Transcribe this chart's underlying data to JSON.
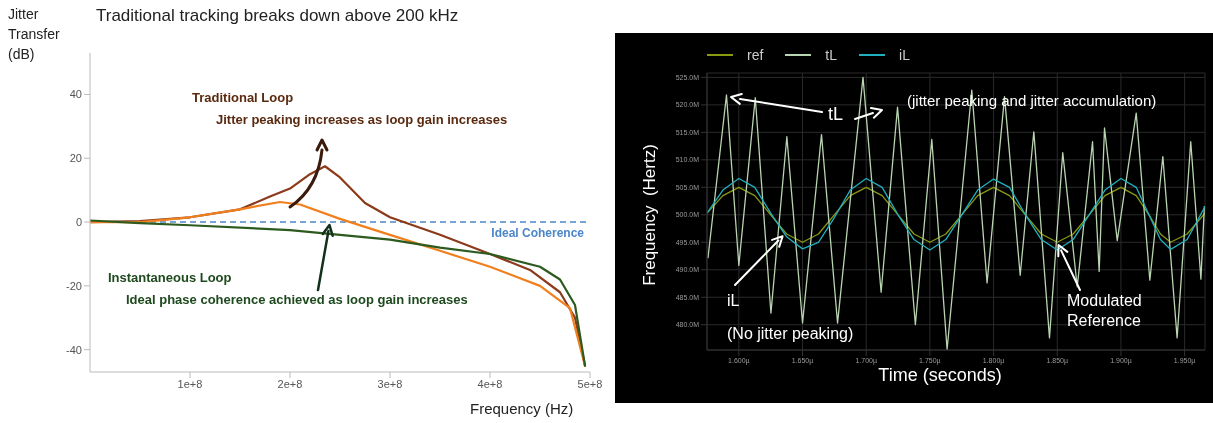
{
  "chart_data": [
    {
      "type": "line",
      "title": "Traditional tracking breaks down above 200 kHz",
      "xlabel": "Frequency (Hz)",
      "ylabel": "Jitter Transfer (dB)",
      "xlim": [
        0,
        500000000.0
      ],
      "ylim": [
        -47,
        53
      ],
      "xticks": [
        {
          "value": 100000000.0,
          "label": "1e+8"
        },
        {
          "value": 200000000.0,
          "label": "2e+8"
        },
        {
          "value": 300000000.0,
          "label": "3e+8"
        },
        {
          "value": 400000000.0,
          "label": "4e+8"
        },
        {
          "value": 500000000.0,
          "label": "5e+8"
        }
      ],
      "yticks": [
        -40,
        -20,
        0,
        20,
        40
      ],
      "grid": false,
      "legend": false,
      "marker": "none",
      "line_style": "solid",
      "series": [
        {
          "color": "#8b3a1a",
          "x": [
            0,
            50000000.0,
            100000000.0,
            150000000.0,
            180000000.0,
            200000000.0,
            220000000.0,
            235000000.0,
            250000000.0,
            275000000.0,
            300000000.0,
            350000000.0,
            400000000.0,
            440000000.0,
            470000000.0,
            485000000.0,
            495000000.0
          ],
          "values": [
            0,
            0.3,
            1.5,
            4,
            8,
            10.5,
            15,
            17.5,
            14,
            6,
            1.5,
            -4,
            -10,
            -15,
            -22,
            -30,
            -45
          ]
        },
        {
          "color": "#f07f1e",
          "x": [
            0,
            50000000.0,
            100000000.0,
            150000000.0,
            190000000.0,
            210000000.0,
            250000000.0,
            300000000.0,
            350000000.0,
            400000000.0,
            450000000.0,
            480000000.0,
            495000000.0
          ],
          "values": [
            0,
            0,
            1.5,
            4,
            6.3,
            5.5,
            1,
            -4,
            -9,
            -14,
            -20,
            -27,
            -45
          ]
        },
        {
          "color": "#2d5a1e",
          "x": [
            0,
            50000000.0,
            100000000.0,
            200000000.0,
            250000000.0,
            300000000.0,
            350000000.0,
            400000000.0,
            450000000.0,
            470000000.0,
            485000000.0,
            495000000.0
          ],
          "values": [
            0.5,
            -0.3,
            -1,
            -2.5,
            -4,
            -5.5,
            -8,
            -10,
            -14,
            -18,
            -26,
            -45
          ]
        }
      ],
      "ref_lines": [
        {
          "axis": "y",
          "value": 0,
          "label": "Ideal Coherence",
          "color": "#4a86c8",
          "line_style": "dashed"
        }
      ],
      "annotations": [
        "Traditional Loop",
        "Jitter peaking increases as loop gain increases",
        "Instantaneous Loop",
        {
          "text": "Ideal phase coherence achieved as loop gain increases",
          "x": 240000000.0,
          "y": 0
        }
      ]
    },
    {
      "type": "line",
      "xlabel": "Time (seconds)",
      "ylabel": "Frequency  (Hertz)",
      "xlim": [
        1.575,
        1.966
      ],
      "ylim": [
        475.4,
        525.8
      ],
      "xticks": [
        {
          "value": 1.6,
          "label": "1.600µ"
        },
        {
          "value": 1.65,
          "label": "1.650µ"
        },
        {
          "value": 1.7,
          "label": "1.700µ"
        },
        {
          "value": 1.75,
          "label": "1.750µ"
        },
        {
          "value": 1.8,
          "label": "1.800µ"
        },
        {
          "value": 1.85,
          "label": "1.850µ"
        },
        {
          "value": 1.9,
          "label": "1.900µ"
        },
        {
          "value": 1.95,
          "label": "1.950µ"
        }
      ],
      "yticks": [
        {
          "value": 480,
          "label": "480.0M"
        },
        {
          "value": 485,
          "label": "485.0M"
        },
        {
          "value": 490,
          "label": "490.0M"
        },
        {
          "value": 495,
          "label": "495.0M"
        },
        {
          "value": 500,
          "label": "500.0M"
        },
        {
          "value": 505,
          "label": "505.0M"
        },
        {
          "value": 510,
          "label": "510.0M"
        },
        {
          "value": 515,
          "label": "515.0M"
        },
        {
          "value": 520,
          "label": "520.0M"
        },
        {
          "value": 525,
          "label": "525.0M"
        }
      ],
      "grid": true,
      "legend": "top left",
      "marker": "none",
      "line_style": "solid",
      "series": [
        {
          "name": "ref",
          "color": "#8a9a10",
          "x": [
            1.575,
            1.5875,
            1.6,
            1.6125,
            1.625,
            1.6375,
            1.65,
            1.6625,
            1.675,
            1.6875,
            1.7,
            1.7125,
            1.725,
            1.7375,
            1.75,
            1.7625,
            1.775,
            1.7875,
            1.8,
            1.8125,
            1.825,
            1.8375,
            1.85,
            1.8625,
            1.875,
            1.8875,
            1.9,
            1.912,
            1.922,
            1.931,
            1.939,
            1.952,
            1.966
          ],
          "values": [
            500.3,
            503.5,
            505,
            503.5,
            500,
            496.5,
            495,
            496.5,
            500,
            503.5,
            505,
            503.5,
            500,
            496.5,
            495,
            496.5,
            500,
            503.5,
            505,
            503.5,
            500,
            496.5,
            495,
            496.5,
            500,
            503.5,
            505,
            503.5,
            500,
            496.5,
            495,
            496.5,
            500.3
          ]
        },
        {
          "name": "tL",
          "color": "#b8d4b0",
          "x": [
            1.5758,
            1.5903,
            1.6,
            1.6129,
            1.6252,
            1.6377,
            1.65,
            1.6649,
            1.6775,
            1.6975,
            1.7117,
            1.7246,
            1.7386,
            1.7515,
            1.7635,
            1.7829,
            1.7949,
            1.8086,
            1.8209,
            1.8316,
            1.8439,
            1.8543,
            1.8657,
            1.8777,
            1.8829,
            1.8871,
            1.8971,
            1.912,
            1.9227,
            1.9329,
            1.9441,
            1.9548,
            1.9628,
            1.9655
          ],
          "values": [
            492.2,
            521.8,
            490.8,
            521.3,
            482.1,
            514.2,
            480.3,
            514.6,
            480.3,
            525,
            485.9,
            519.6,
            480,
            513.7,
            475.5,
            522.7,
            487.6,
            521.5,
            489,
            515.1,
            477.6,
            511.3,
            486.9,
            513.3,
            489.7,
            515.8,
            495.3,
            518.5,
            488.1,
            510.6,
            477.6,
            513.3,
            488.3,
            501.5
          ]
        },
        {
          "name": "iL",
          "color": "#20b0c0",
          "x": [
            1.575,
            1.5875,
            1.6,
            1.6125,
            1.625,
            1.6375,
            1.65,
            1.6625,
            1.675,
            1.6875,
            1.7,
            1.7125,
            1.725,
            1.7375,
            1.75,
            1.7625,
            1.775,
            1.7875,
            1.8,
            1.8125,
            1.825,
            1.8375,
            1.85,
            1.8625,
            1.875,
            1.8875,
            1.9,
            1.912,
            1.922,
            1.931,
            1.939,
            1.952,
            1.966
          ],
          "values": [
            500.3,
            504.5,
            506.6,
            505,
            500.3,
            496,
            493.8,
            495,
            499.5,
            504.5,
            506.6,
            505,
            500,
            495.5,
            493.6,
            495.5,
            500,
            504.5,
            506.5,
            505,
            500,
            495.5,
            493.6,
            495.5,
            500,
            504.5,
            506.6,
            505,
            500,
            495.5,
            493.7,
            495.5,
            501.5
          ]
        }
      ],
      "annotations": [
        "tL",
        "(jitter peaking and jitter accumulation)",
        {
          "text": "iL",
          "x": 1.636,
          "y": 496.5
        },
        "(No jitter peaking)",
        {
          "text": "Modulated Reference",
          "x": 1.85,
          "y": 495
        }
      ]
    }
  ]
}
